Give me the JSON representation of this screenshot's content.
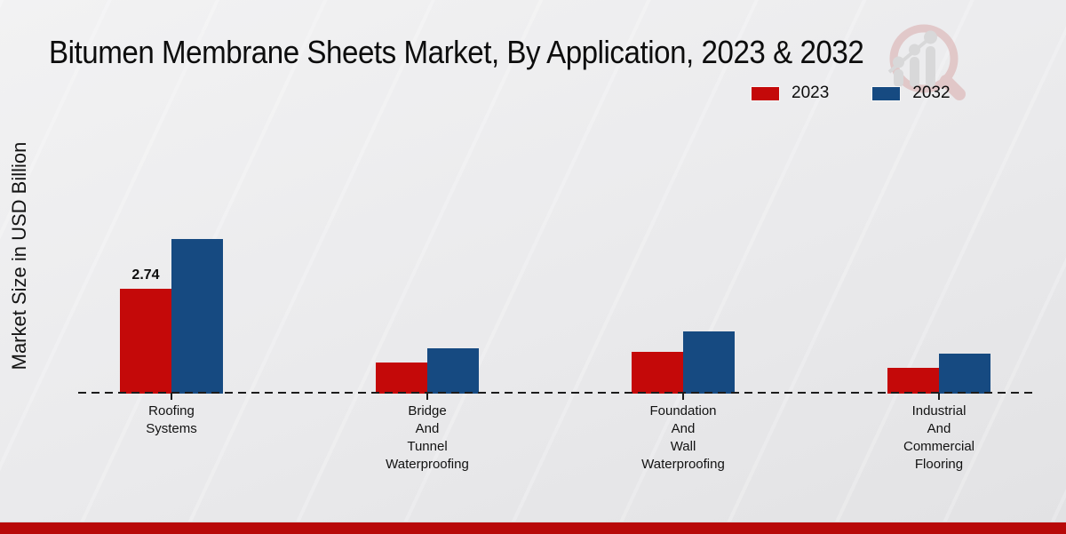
{
  "chart_data": {
    "type": "bar",
    "title": "Bitumen Membrane Sheets Market, By Application, 2023 & 2032",
    "ylabel": "Market Size in USD Billion",
    "xlabel": "",
    "categories": [
      "Roofing\nSystems",
      "Bridge\nAnd\nTunnel\nWaterproofing",
      "Foundation\nAnd\nWall\nWaterproofing",
      "Industrial\nAnd\nCommercial\nFlooring"
    ],
    "series": [
      {
        "name": "2023",
        "color": "#c40909",
        "values": [
          2.74,
          0.82,
          1.09,
          0.67
        ],
        "value_labels": [
          "2.74",
          "",
          "",
          ""
        ]
      },
      {
        "name": "2032",
        "color": "#164a81",
        "values": [
          4.05,
          1.19,
          1.63,
          1.05
        ],
        "value_labels": [
          "",
          "",
          "",
          ""
        ]
      }
    ],
    "ylim": [
      0,
      4.5
    ],
    "grid": false,
    "legend_position": "top-right",
    "baseline_style": "dashed"
  },
  "watermark": {
    "name": "magnifier-growth-chart-logo",
    "ring_color": "#d9abab",
    "glyph_color": "#c9c9c9"
  },
  "colors": {
    "accent_red": "#c40909",
    "accent_blue": "#164a81",
    "footer_strip": "#b80909",
    "background": "#ebebed",
    "text": "#0d0d0d"
  }
}
